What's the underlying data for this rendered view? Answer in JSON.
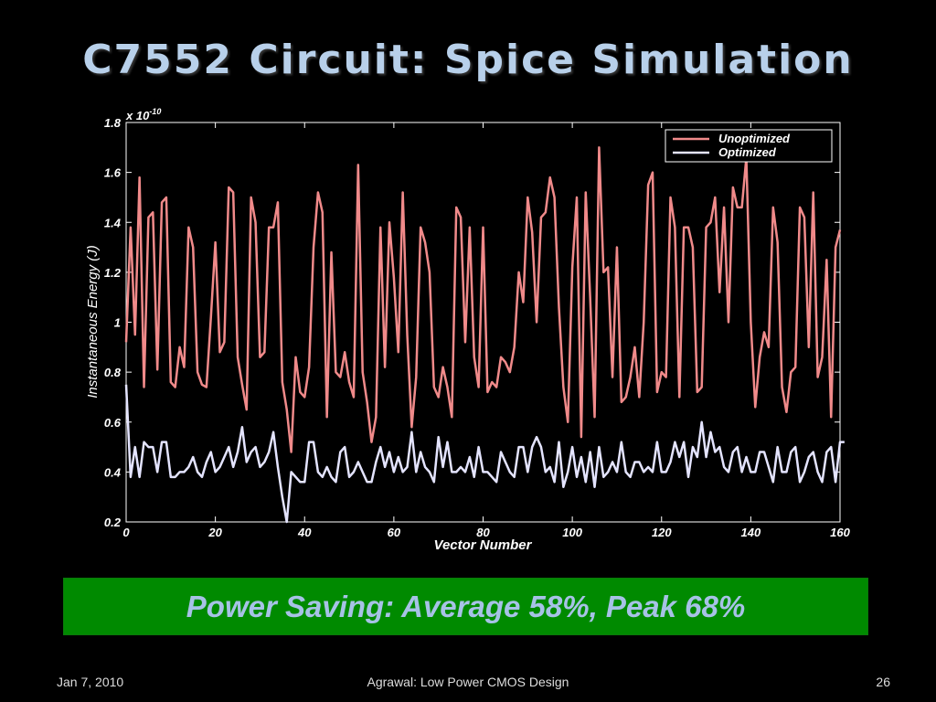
{
  "slide": {
    "title": "C7552 Circuit: Spice Simulation",
    "banner": "Power Saving: Average 58%, Peak 68%",
    "footer_date": "Jan 7, 2010",
    "footer_center": "Agrawal: Low Power CMOS Design",
    "page_number": "26"
  },
  "chart_data": {
    "type": "line",
    "title": "",
    "xlabel": "Vector Number",
    "ylabel": "Instantaneous Energy (J)",
    "y_multiplier": "x 10",
    "y_exponent": "-10",
    "xlim": [
      0,
      160
    ],
    "ylim": [
      0.2,
      1.8
    ],
    "xticks": [
      0,
      20,
      40,
      60,
      80,
      100,
      120,
      140,
      160
    ],
    "yticks": [
      0.2,
      0.4,
      0.6,
      0.8,
      1,
      1.2,
      1.4,
      1.6,
      1.8
    ],
    "ytick_labels": [
      "0.2",
      "0.4",
      "0.6",
      "0.8",
      "1",
      "1.2",
      "1.4",
      "1.6",
      "1.8"
    ],
    "grid": false,
    "legend_position": "top-right",
    "series": [
      {
        "name": "Unoptimized",
        "color": "#f08a8a",
        "values": [
          0.92,
          1.38,
          0.95,
          1.58,
          0.74,
          1.42,
          1.44,
          0.81,
          1.48,
          1.5,
          0.76,
          0.74,
          0.9,
          0.82,
          1.38,
          1.3,
          0.8,
          0.75,
          0.74,
          1.02,
          1.32,
          0.88,
          0.92,
          1.54,
          1.52,
          0.86,
          0.75,
          0.65,
          1.5,
          1.4,
          0.86,
          0.88,
          1.38,
          1.38,
          1.48,
          0.76,
          0.65,
          0.48,
          0.86,
          0.72,
          0.7,
          0.82,
          1.3,
          1.52,
          1.44,
          0.62,
          1.28,
          0.8,
          0.78,
          0.88,
          0.76,
          0.7,
          1.63,
          0.8,
          0.68,
          0.52,
          0.62,
          1.38,
          0.82,
          1.4,
          1.18,
          0.88,
          1.52,
          0.95,
          0.58,
          0.78,
          1.38,
          1.32,
          1.2,
          0.74,
          0.7,
          0.82,
          0.74,
          0.62,
          1.46,
          1.42,
          0.92,
          1.38,
          0.86,
          0.74,
          1.38,
          0.72,
          0.76,
          0.74,
          0.86,
          0.84,
          0.8,
          0.9,
          1.2,
          1.08,
          1.5,
          1.36,
          1.0,
          1.42,
          1.44,
          1.58,
          1.5,
          1.06,
          0.74,
          0.6,
          1.22,
          1.5,
          0.54,
          1.52,
          1.1,
          0.62,
          1.7,
          1.2,
          1.22,
          0.78,
          1.3,
          0.68,
          0.7,
          0.78,
          0.9,
          0.7,
          1.0,
          1.55,
          1.6,
          0.72,
          0.8,
          0.78,
          1.5,
          1.38,
          0.7,
          1.38,
          1.38,
          1.3,
          0.72,
          0.74,
          1.38,
          1.4,
          1.5,
          1.12,
          1.46,
          1.0,
          1.54,
          1.46,
          1.46,
          1.66,
          1.0,
          0.66,
          0.86,
          0.96,
          0.9,
          1.46,
          1.32,
          0.74,
          0.64,
          0.8,
          0.82,
          1.46,
          1.42,
          0.9,
          1.52,
          0.78,
          0.86,
          1.25,
          0.62,
          1.3,
          1.37
        ]
      },
      {
        "name": "Optimized",
        "color": "#e4e4ff",
        "values": [
          0.75,
          0.38,
          0.5,
          0.38,
          0.52,
          0.5,
          0.5,
          0.4,
          0.52,
          0.52,
          0.38,
          0.38,
          0.4,
          0.4,
          0.42,
          0.46,
          0.4,
          0.38,
          0.44,
          0.48,
          0.4,
          0.42,
          0.46,
          0.5,
          0.42,
          0.48,
          0.58,
          0.44,
          0.48,
          0.5,
          0.42,
          0.44,
          0.48,
          0.56,
          0.42,
          0.3,
          0.2,
          0.4,
          0.38,
          0.36,
          0.36,
          0.52,
          0.52,
          0.4,
          0.38,
          0.42,
          0.38,
          0.36,
          0.48,
          0.5,
          0.38,
          0.4,
          0.44,
          0.4,
          0.36,
          0.36,
          0.44,
          0.5,
          0.42,
          0.48,
          0.4,
          0.46,
          0.4,
          0.42,
          0.56,
          0.4,
          0.48,
          0.42,
          0.4,
          0.36,
          0.54,
          0.42,
          0.52,
          0.4,
          0.4,
          0.42,
          0.4,
          0.46,
          0.38,
          0.5,
          0.4,
          0.4,
          0.38,
          0.36,
          0.48,
          0.44,
          0.4,
          0.38,
          0.5,
          0.5,
          0.4,
          0.5,
          0.54,
          0.5,
          0.4,
          0.42,
          0.36,
          0.52,
          0.34,
          0.4,
          0.5,
          0.38,
          0.46,
          0.36,
          0.48,
          0.34,
          0.5,
          0.38,
          0.4,
          0.44,
          0.4,
          0.52,
          0.4,
          0.38,
          0.44,
          0.44,
          0.4,
          0.42,
          0.4,
          0.52,
          0.4,
          0.4,
          0.44,
          0.52,
          0.46,
          0.52,
          0.38,
          0.5,
          0.46,
          0.6,
          0.46,
          0.56,
          0.48,
          0.5,
          0.42,
          0.4,
          0.48,
          0.5,
          0.4,
          0.46,
          0.4,
          0.4,
          0.48,
          0.48,
          0.42,
          0.36,
          0.5,
          0.4,
          0.4,
          0.48,
          0.5,
          0.36,
          0.4,
          0.46,
          0.48,
          0.4,
          0.36,
          0.48,
          0.5,
          0.36,
          0.52,
          0.52
        ]
      }
    ]
  }
}
